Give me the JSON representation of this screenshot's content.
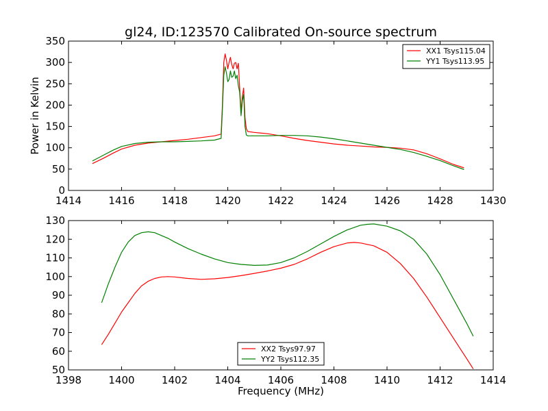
{
  "chart_data": [
    {
      "type": "line",
      "title": "gl24, ID:123570 Calibrated On-source spectrum",
      "xlabel": "",
      "ylabel": "Power in Kelvin",
      "xlim": [
        1414,
        1430
      ],
      "ylim": [
        0,
        350
      ],
      "xticks": [
        "1414",
        "1416",
        "1418",
        "1420",
        "1422",
        "1424",
        "1426",
        "1428",
        "1430"
      ],
      "yticks": [
        "0",
        "50",
        "100",
        "150",
        "200",
        "250",
        "300",
        "350"
      ],
      "grid": false,
      "legend_position": "top-right",
      "series": [
        {
          "name": "XX1 Tsys115.04",
          "color": "#ff0000",
          "x": [
            1414.9,
            1415.3,
            1415.7,
            1416.0,
            1416.5,
            1417.0,
            1417.5,
            1418.0,
            1418.5,
            1419.0,
            1419.5,
            1419.75,
            1419.8,
            1419.85,
            1419.9,
            1419.95,
            1420.0,
            1420.05,
            1420.1,
            1420.15,
            1420.2,
            1420.25,
            1420.3,
            1420.35,
            1420.4,
            1420.45,
            1420.5,
            1420.55,
            1420.6,
            1420.65,
            1420.7,
            1420.75,
            1421.0,
            1421.5,
            1422.0,
            1422.5,
            1423.0,
            1423.5,
            1424.0,
            1424.5,
            1425.0,
            1425.5,
            1426.0,
            1426.5,
            1427.0,
            1427.5,
            1428.0,
            1428.5,
            1428.9
          ],
          "y": [
            63,
            75,
            88,
            97,
            106,
            111,
            114,
            117,
            120,
            124,
            128,
            132,
            200,
            300,
            320,
            305,
            285,
            300,
            312,
            295,
            285,
            298,
            300,
            285,
            298,
            240,
            185,
            220,
            240,
            170,
            145,
            138,
            136,
            133,
            128,
            122,
            117,
            113,
            109,
            106,
            104,
            102,
            101,
            99,
            95,
            86,
            74,
            61,
            53
          ]
        },
        {
          "name": "YY1 Tsys113.95",
          "color": "#008000",
          "x": [
            1414.9,
            1415.3,
            1415.7,
            1416.0,
            1416.5,
            1417.0,
            1417.5,
            1418.0,
            1418.5,
            1419.0,
            1419.5,
            1419.75,
            1419.8,
            1419.85,
            1419.9,
            1419.95,
            1420.0,
            1420.05,
            1420.1,
            1420.15,
            1420.2,
            1420.25,
            1420.3,
            1420.35,
            1420.4,
            1420.45,
            1420.5,
            1420.55,
            1420.6,
            1420.65,
            1420.7,
            1420.75,
            1421.0,
            1421.5,
            1422.0,
            1422.5,
            1423.0,
            1423.5,
            1424.0,
            1424.5,
            1425.0,
            1425.5,
            1426.0,
            1426.5,
            1427.0,
            1427.5,
            1428.0,
            1428.5,
            1428.9
          ],
          "y": [
            69,
            82,
            95,
            103,
            110,
            113,
            114,
            114,
            115,
            116,
            118,
            122,
            190,
            270,
            290,
            275,
            255,
            260,
            280,
            265,
            268,
            280,
            262,
            270,
            245,
            230,
            175,
            210,
            225,
            150,
            130,
            128,
            128,
            128,
            129,
            129,
            128,
            125,
            121,
            116,
            111,
            106,
            101,
            96,
            89,
            80,
            70,
            58,
            49
          ]
        }
      ]
    },
    {
      "type": "line",
      "title": "",
      "xlabel": "Frequency (MHz)",
      "ylabel": "",
      "xlim": [
        1398,
        1414
      ],
      "ylim": [
        50,
        130
      ],
      "xticks": [
        "1398",
        "1400",
        "1402",
        "1404",
        "1406",
        "1408",
        "1410",
        "1412",
        "1414"
      ],
      "yticks": [
        "50",
        "60",
        "70",
        "80",
        "90",
        "100",
        "110",
        "120",
        "130"
      ],
      "grid": false,
      "legend_position": "bottom-center",
      "series": [
        {
          "name": "XX2 Tsys97.97",
          "color": "#ff0000",
          "x": [
            1399.25,
            1399.5,
            1399.75,
            1400.0,
            1400.25,
            1400.5,
            1400.75,
            1401.0,
            1401.25,
            1401.5,
            1401.75,
            1402.0,
            1402.5,
            1403.0,
            1403.5,
            1404.0,
            1404.5,
            1405.0,
            1405.5,
            1406.0,
            1406.5,
            1407.0,
            1407.5,
            1408.0,
            1408.5,
            1408.75,
            1409.0,
            1409.5,
            1410.0,
            1410.5,
            1411.0,
            1411.5,
            1412.0,
            1412.5,
            1413.0,
            1413.25
          ],
          "y": [
            63.5,
            69,
            75,
            81,
            86,
            91,
            95,
            97.5,
            99,
            99.8,
            100,
            99.8,
            99,
            98.5,
            98.8,
            99.5,
            100.5,
            101.7,
            103,
            104.5,
            106.5,
            109.5,
            113,
            116,
            118,
            118.3,
            118,
            116.5,
            113,
            107,
            99,
            89,
            78,
            67,
            56,
            50.5
          ]
        },
        {
          "name": "YY2 Tsys112.35",
          "color": "#008000",
          "x": [
            1399.25,
            1399.5,
            1399.75,
            1400.0,
            1400.25,
            1400.5,
            1400.75,
            1401.0,
            1401.25,
            1401.5,
            1401.75,
            1402.0,
            1402.5,
            1403.0,
            1403.5,
            1404.0,
            1404.5,
            1405.0,
            1405.5,
            1406.0,
            1406.5,
            1407.0,
            1407.5,
            1408.0,
            1408.5,
            1409.0,
            1409.25,
            1409.5,
            1410.0,
            1410.5,
            1411.0,
            1411.5,
            1412.0,
            1412.5,
            1413.0,
            1413.25
          ],
          "y": [
            86,
            96,
            105,
            113,
            118.5,
            122,
            123.5,
            124,
            123.5,
            122,
            120.5,
            118.5,
            115,
            112,
            109.5,
            107.5,
            106.5,
            106,
            106.2,
            107.5,
            110,
            113.5,
            117.5,
            121.5,
            125,
            127.5,
            128,
            128.2,
            127,
            124.5,
            120,
            112,
            101,
            88,
            75,
            68
          ]
        }
      ]
    }
  ]
}
